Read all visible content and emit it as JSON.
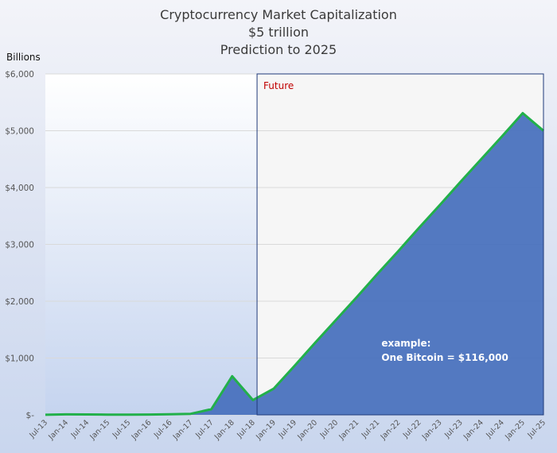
{
  "chart_data": {
    "type": "area",
    "title": "Cryptocurrency Market Capitalization",
    "subtitle": "$5 trillion",
    "subtitle2": "Prediction to 2025",
    "ylabel": "Billions",
    "ylim": [
      0,
      6000
    ],
    "yticks": [
      {
        "value": 0,
        "label": "$-"
      },
      {
        "value": 1000,
        "label": "$1,000"
      },
      {
        "value": 2000,
        "label": "$2,000"
      },
      {
        "value": 3000,
        "label": "$3,000"
      },
      {
        "value": 4000,
        "label": "$4,000"
      },
      {
        "value": 5000,
        "label": "$5,000"
      },
      {
        "value": 6000,
        "label": "$6,000"
      }
    ],
    "categories": [
      "Jul-13",
      "Jan-14",
      "Jul-14",
      "Jan-15",
      "Jul-15",
      "Jan-16",
      "Jul-16",
      "Jan-17",
      "Jul-17",
      "Jan-18",
      "Jul-18",
      "Jan-19",
      "Jul-19",
      "Jan-20",
      "Jul-20",
      "Jan-21",
      "Jul-21",
      "Jan-22",
      "Jul-22",
      "Jan-23",
      "Jul-23",
      "Jan-24",
      "Jul-24",
      "Jan-25",
      "Jul-25"
    ],
    "series": [
      {
        "values": [
          1,
          8,
          7,
          4,
          3,
          6,
          10,
          18,
          100,
          680,
          260,
          460,
          860,
          1270,
          1670,
          2070,
          2480,
          2880,
          3290,
          3690,
          4100,
          4500,
          4900,
          5310,
          5000
        ]
      }
    ],
    "future_region": {
      "start": "Jul-18",
      "end": "Jul-25",
      "label": "Future"
    },
    "annotation": {
      "line1": "example:",
      "line2": "One Bitcoin = $116,000",
      "at": "Jul-21",
      "y": 1200
    },
    "grid": "horizontal",
    "colors": {
      "fill": "#4a72be",
      "line": "#22b04a",
      "future_bg": "#f6f6f6",
      "future_border": "#1f3a7a"
    }
  }
}
